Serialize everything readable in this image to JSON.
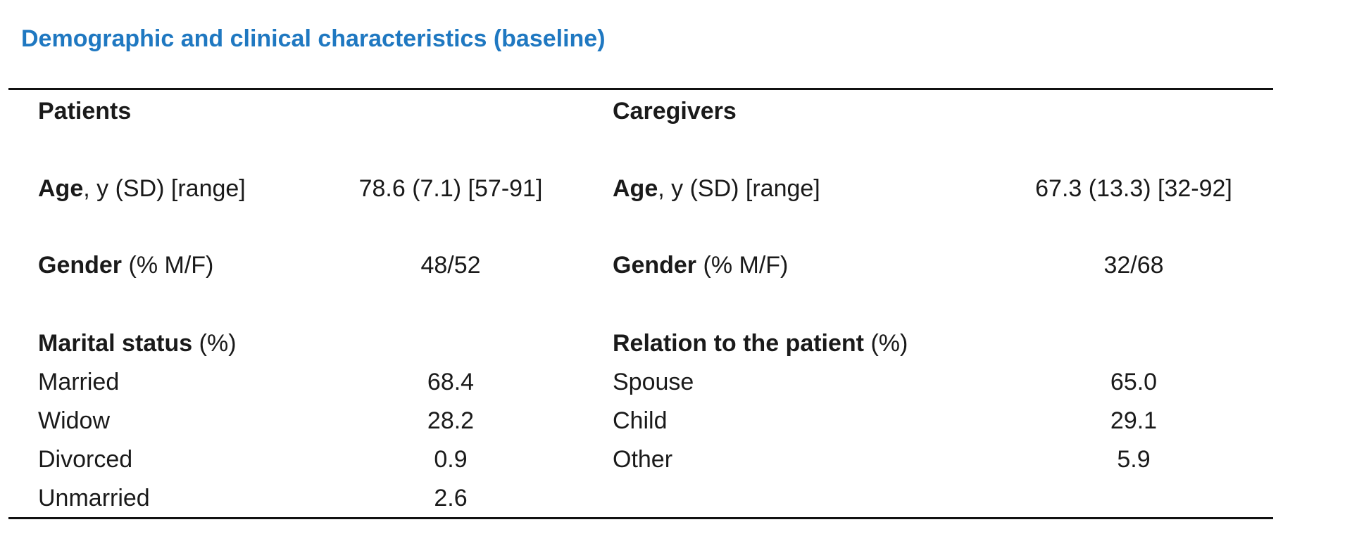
{
  "title": "Demographic and clinical characteristics (baseline)",
  "patients": {
    "header": "Patients",
    "age": {
      "bold": "Age",
      "rest": ", y (SD) [range]",
      "value": "78.6 (7.1) [57-91]"
    },
    "gender": {
      "bold": "Gender",
      "rest": " (% M/F)",
      "value": "48/52"
    },
    "marital": {
      "bold": "Marital status",
      "rest": " (%)",
      "rows": [
        {
          "label": "Married",
          "value": "68.4"
        },
        {
          "label": "Widow",
          "value": "28.2"
        },
        {
          "label": "Divorced",
          "value": "0.9"
        },
        {
          "label": "Unmarried",
          "value": "2.6"
        }
      ]
    }
  },
  "caregivers": {
    "header": "Caregivers",
    "age": {
      "bold": "Age",
      "rest": ", y (SD) [range]",
      "value": "67.3 (13.3) [32-92]"
    },
    "gender": {
      "bold": "Gender",
      "rest": " (% M/F)",
      "value": "32/68"
    },
    "relation": {
      "bold": "Relation to the patient",
      "rest": " (%)",
      "rows": [
        {
          "label": "Spouse",
          "value": "65.0"
        },
        {
          "label": "Child",
          "value": "29.1"
        },
        {
          "label": "Other",
          "value": "5.9"
        }
      ]
    }
  }
}
